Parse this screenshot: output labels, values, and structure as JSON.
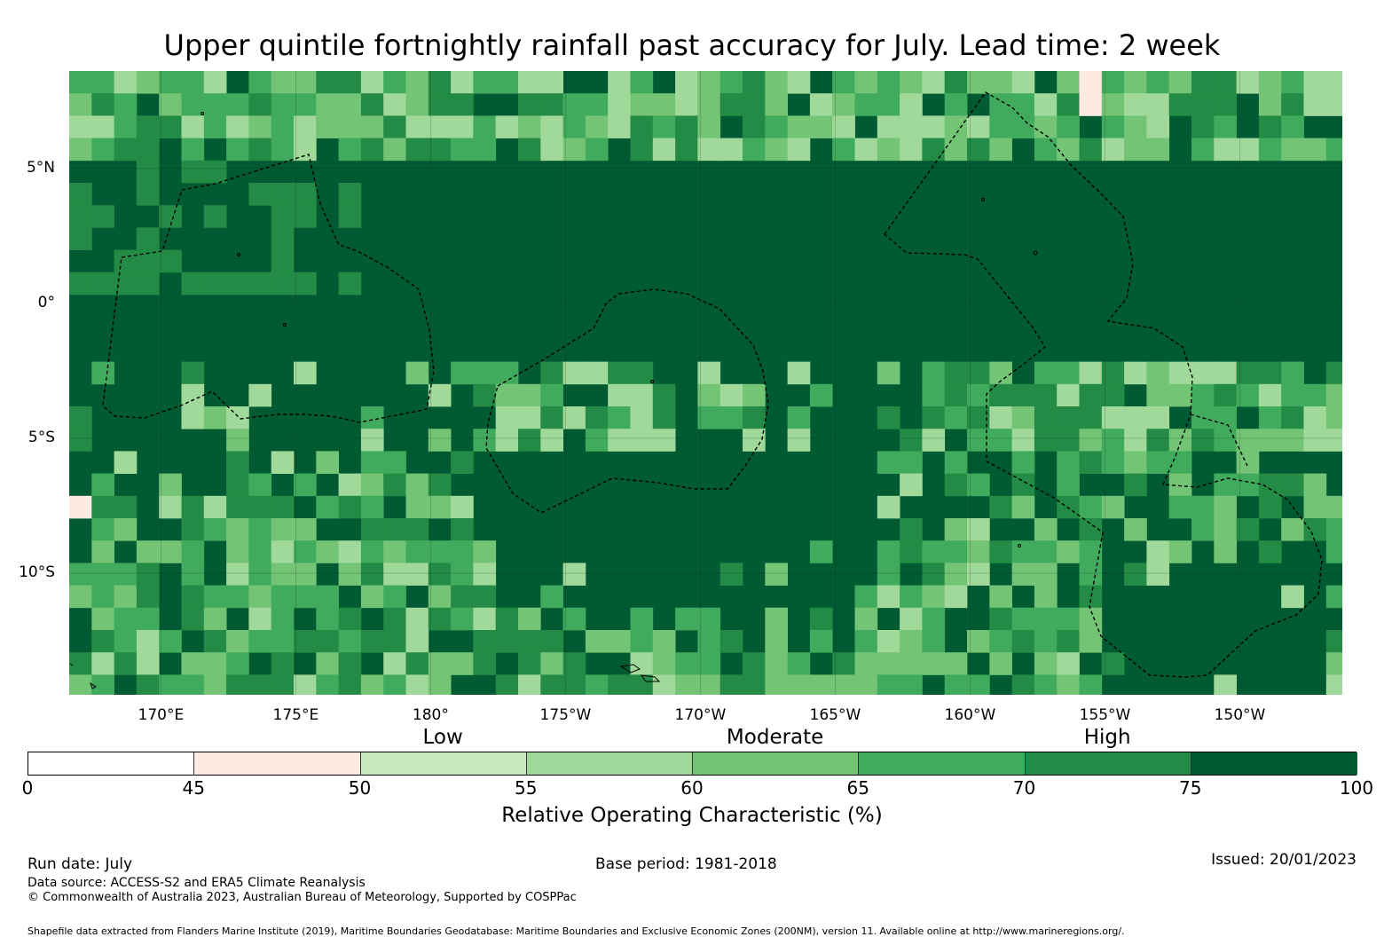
{
  "title": "Upper quintile fortnightly rainfall past accuracy for July. Lead time: 2 week",
  "map": {
    "lat_ticks": [
      {
        "label": "5°N",
        "lat": 5
      },
      {
        "label": "0°",
        "lat": 0
      },
      {
        "label": "5°S",
        "lat": -5
      },
      {
        "label": "10°S",
        "lat": -10
      }
    ],
    "lon_ticks": [
      {
        "label": "170°E",
        "lon": 170
      },
      {
        "label": "175°E",
        "lon": 175
      },
      {
        "label": "180°",
        "lon": 180
      },
      {
        "label": "175°W",
        "lon": 185
      },
      {
        "label": "170°W",
        "lon": 190
      },
      {
        "label": "165°W",
        "lon": 195
      },
      {
        "label": "160°W",
        "lon": 200
      },
      {
        "label": "155°W",
        "lon": 205
      },
      {
        "label": "150°W",
        "lon": 210
      }
    ],
    "extent": {
      "lon_min": 166.6,
      "lon_max": 213.8,
      "lat_min": -14.5,
      "lat_max": 8.6
    },
    "boundary_color": "#000000"
  },
  "colorbar": {
    "band_labels": [
      {
        "label": "Low",
        "value": 52.5
      },
      {
        "label": "Moderate",
        "value": 62.5
      },
      {
        "label": "High",
        "value": 72.5
      }
    ],
    "bins": [
      {
        "from": 0,
        "to": 45,
        "color": "#ffffff"
      },
      {
        "from": 45,
        "to": 50,
        "color": "#feeae1"
      },
      {
        "from": 50,
        "to": 55,
        "color": "#c7e9c0"
      },
      {
        "from": 55,
        "to": 60,
        "color": "#a1d99b"
      },
      {
        "from": 60,
        "to": 65,
        "color": "#74c476"
      },
      {
        "from": 65,
        "to": 70,
        "color": "#41ab5d"
      },
      {
        "from": 70,
        "to": 75,
        "color": "#238b45"
      },
      {
        "from": 75,
        "to": 100,
        "color": "#005a32"
      }
    ],
    "tick_labels": [
      "0",
      "45",
      "50",
      "55",
      "60",
      "65",
      "70",
      "75",
      "100"
    ],
    "label": "Relative Operating Characteristic (%)"
  },
  "footer": {
    "run_date": "Run date: July",
    "base_period": "Base period: 1981-2018",
    "issued": "Issued: 20/01/2023",
    "data_source": "Data source: ACCESS-S2 and ERA5 Climate Reanalysis",
    "copyright": "© Commonwealth of Australia 2023, Australian Bureau of Meteorology, Supported by COSPPac",
    "shapefile": "Shapefile data extracted from Flanders Marine Institute (2019), Maritime Boundaries Geodatabase: Maritime Boundaries and Exclusive Economic Zones (200NM), version 11. Available online at http://www.marineregions.org/."
  }
}
